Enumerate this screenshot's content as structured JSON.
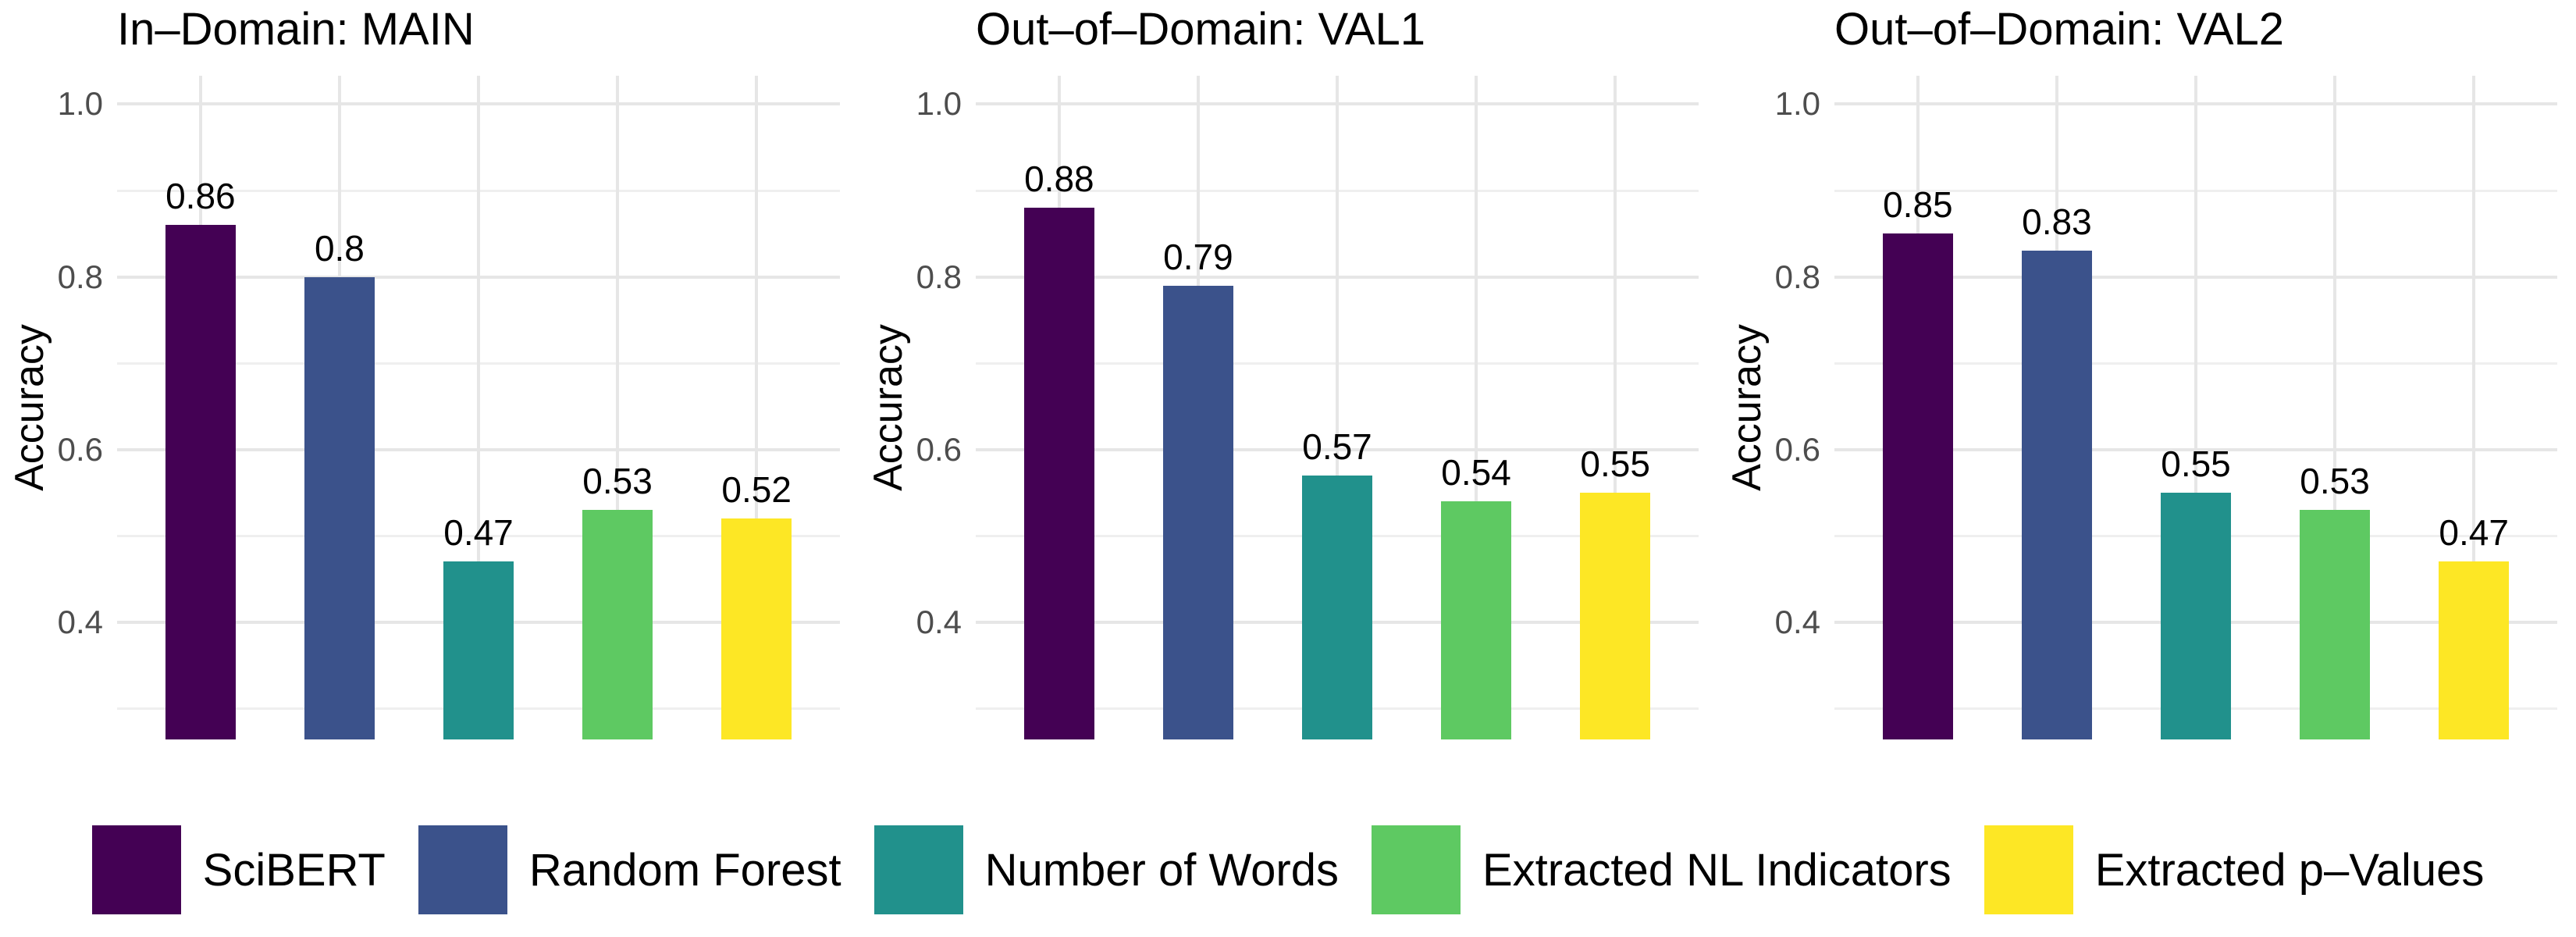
{
  "figure": {
    "y_axis_label": "Accuracy",
    "y_ticks": [
      {
        "label": "1.0",
        "value": 1.0
      },
      {
        "label": "0.8",
        "value": 0.8
      },
      {
        "label": "0.6",
        "value": 0.6
      },
      {
        "label": "0.4",
        "value": 0.4
      }
    ],
    "gridlines": {
      "major": [
        0.4,
        0.6,
        0.8,
        1.0
      ],
      "minor": [
        0.3,
        0.5,
        0.7,
        0.9
      ]
    },
    "series": [
      {
        "name": "SciBERT",
        "color": "#440154"
      },
      {
        "name": "Random Forest",
        "color": "#3B528B"
      },
      {
        "name": "Number of Words",
        "color": "#21918C"
      },
      {
        "name": "Extracted NL Indicators",
        "color": "#5EC962"
      },
      {
        "name": "Extracted p–Values",
        "color": "#FDE725"
      }
    ],
    "panels": [
      {
        "title": "In–Domain: MAIN",
        "values": [
          0.86,
          0.8,
          0.47,
          0.53,
          0.52
        ],
        "value_labels": [
          "0.86",
          "0.8",
          "0.47",
          "0.53",
          "0.52"
        ]
      },
      {
        "title": "Out–of–Domain: VAL1",
        "values": [
          0.88,
          0.79,
          0.57,
          0.54,
          0.55
        ],
        "value_labels": [
          "0.88",
          "0.79",
          "0.57",
          "0.54",
          "0.55"
        ]
      },
      {
        "title": "Out–of–Domain: VAL2",
        "values": [
          0.85,
          0.83,
          0.55,
          0.53,
          0.47
        ],
        "value_labels": [
          "0.85",
          "0.83",
          "0.55",
          "0.53",
          "0.47"
        ]
      }
    ]
  },
  "chart_data": [
    {
      "type": "bar",
      "title": "In–Domain: MAIN",
      "categories": [
        "SciBERT",
        "Random Forest",
        "Number of Words",
        "Extracted NL Indicators",
        "Extracted p–Values"
      ],
      "values": [
        0.86,
        0.8,
        0.47,
        0.53,
        0.52
      ],
      "bar_colors": [
        "#440154",
        "#3B528B",
        "#21918C",
        "#5EC962",
        "#FDE725"
      ],
      "xlabel": "",
      "ylabel": "Accuracy",
      "ylim": [
        0.264,
        1.033
      ],
      "yticks": [
        0.4,
        0.6,
        0.8,
        1.0
      ],
      "grid": true,
      "legend_position": "bottom"
    },
    {
      "type": "bar",
      "title": "Out–of–Domain: VAL1",
      "categories": [
        "SciBERT",
        "Random Forest",
        "Number of Words",
        "Extracted NL Indicators",
        "Extracted p–Values"
      ],
      "values": [
        0.88,
        0.79,
        0.57,
        0.54,
        0.55
      ],
      "bar_colors": [
        "#440154",
        "#3B528B",
        "#21918C",
        "#5EC962",
        "#FDE725"
      ],
      "xlabel": "",
      "ylabel": "Accuracy",
      "ylim": [
        0.264,
        1.033
      ],
      "yticks": [
        0.4,
        0.6,
        0.8,
        1.0
      ],
      "grid": true,
      "legend_position": "bottom"
    },
    {
      "type": "bar",
      "title": "Out–of–Domain: VAL2",
      "categories": [
        "SciBERT",
        "Random Forest",
        "Number of Words",
        "Extracted NL Indicators",
        "Extracted p–Values"
      ],
      "values": [
        0.85,
        0.83,
        0.55,
        0.53,
        0.47
      ],
      "bar_colors": [
        "#440154",
        "#3B528B",
        "#21918C",
        "#5EC962",
        "#FDE725"
      ],
      "xlabel": "",
      "ylabel": "Accuracy",
      "ylim": [
        0.264,
        1.033
      ],
      "yticks": [
        0.4,
        0.6,
        0.8,
        1.0
      ],
      "grid": true,
      "legend_position": "bottom"
    }
  ],
  "colors": {
    "background": "#ffffff",
    "grid_major": "#e6e6e6",
    "grid_minor": "#efefef",
    "tick_label": "#4d4d4d",
    "text": "#000000"
  }
}
